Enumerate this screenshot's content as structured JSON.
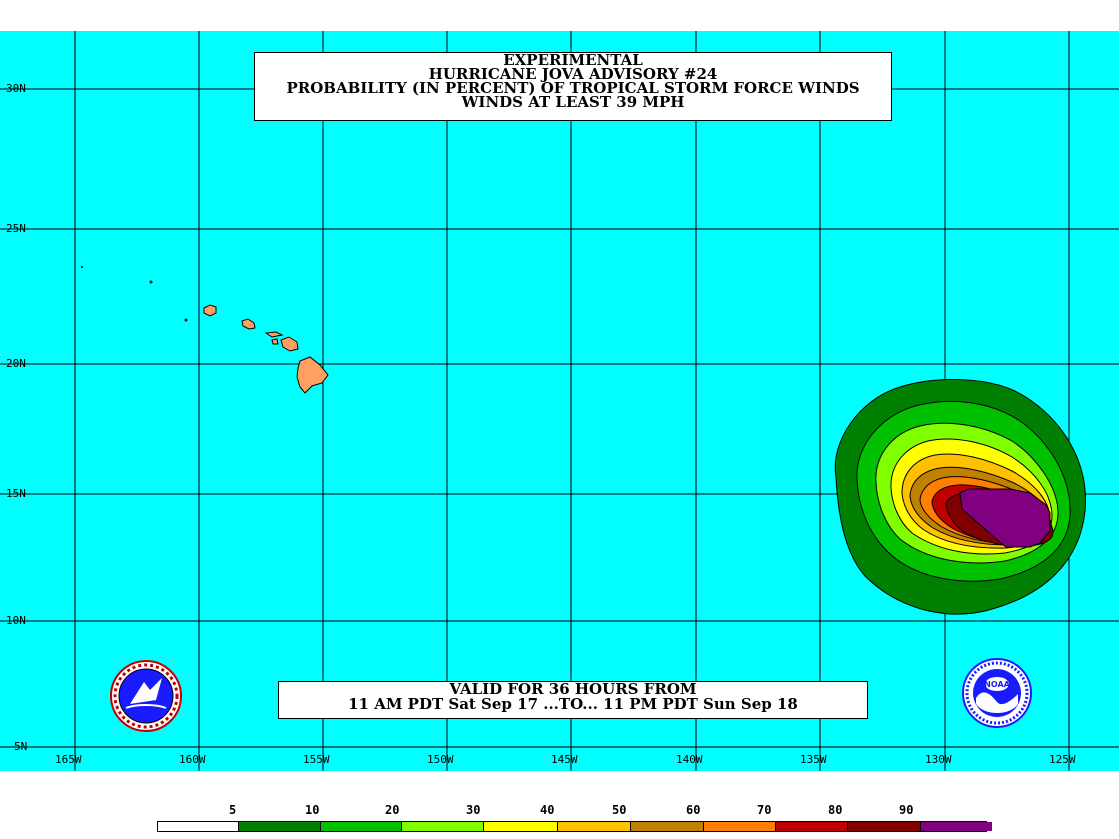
{
  "title": {
    "line1": "EXPERIMENTAL",
    "line2": "HURRICANE JOVA ADVISORY #24",
    "line3": "PROBABILITY (IN PERCENT) OF TROPICAL STORM FORCE WINDS",
    "line4": "WINDS AT LEAST 39 MPH"
  },
  "valid": {
    "line1": "VALID FOR 36 HOURS FROM",
    "line2": "11 AM PDT Sat Sep 17 ...TO... 11 PM PDT Sun Sep 18"
  },
  "latitude_labels": [
    "30N",
    "25N",
    "20N",
    "15N",
    "10N",
    "5N"
  ],
  "longitude_labels": [
    "165W",
    "160W",
    "155W",
    "150W",
    "145W",
    "140W",
    "135W",
    "130W",
    "125W"
  ],
  "legend": {
    "thresholds": [
      "5",
      "10",
      "20",
      "30",
      "40",
      "50",
      "60",
      "70",
      "80",
      "90"
    ],
    "colors": [
      "#ffffff",
      "#008000",
      "#00c000",
      "#80ff00",
      "#ffff00",
      "#ffc000",
      "#c08000",
      "#ff8000",
      "#c00000",
      "#800000",
      "#800080"
    ]
  },
  "colors": {
    "ocean": "#00ffff",
    "land": "#ffa060",
    "grid": "#000000"
  },
  "logos": {
    "left": "nws-logo",
    "right": "noaa-logo"
  }
}
